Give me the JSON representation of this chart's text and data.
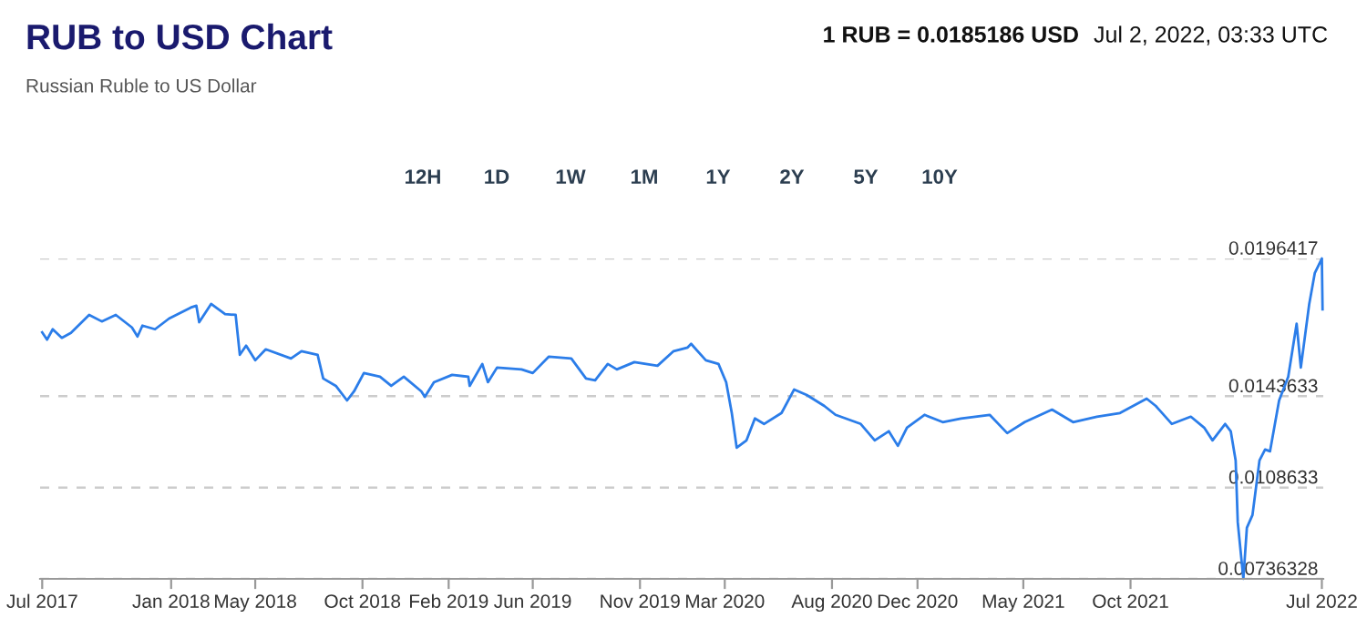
{
  "chart_data": {
    "type": "line",
    "title": "RUB to USD Chart",
    "subtitle": "Russian Ruble to US Dollar",
    "annotations": [
      "1 RUB = 0.0185186 USD",
      "Jul 2, 2022, 03:33 UTC",
      "12H",
      "1D",
      "1W",
      "1M",
      "1Y",
      "2Y",
      "5Y",
      "10Y"
    ],
    "x": [
      "2017-07-01",
      "2017-07-08",
      "2017-07-16",
      "2017-07-29",
      "2017-08-11",
      "2017-09-06",
      "2017-09-24",
      "2017-10-14",
      "2017-11-06",
      "2017-11-14",
      "2017-11-21",
      "2017-12-09",
      "2017-12-29",
      "2018-01-29",
      "2018-02-06",
      "2018-02-10",
      "2018-02-27",
      "2018-03-19",
      "2018-04-03",
      "2018-04-09",
      "2018-04-18",
      "2018-05-01",
      "2018-05-16",
      "2018-06-21",
      "2018-07-06",
      "2018-07-29",
      "2018-08-06",
      "2018-08-24",
      "2018-09-09",
      "2018-09-19",
      "2018-10-03",
      "2018-10-26",
      "2018-11-11",
      "2018-11-29",
      "2018-12-24",
      "2018-12-29",
      "2019-01-11",
      "2019-02-06",
      "2019-03-01",
      "2019-03-03",
      "2019-03-21",
      "2019-03-29",
      "2019-04-11",
      "2019-05-16",
      "2019-06-01",
      "2019-06-24",
      "2019-07-26",
      "2019-08-16",
      "2019-08-29",
      "2019-09-16",
      "2019-09-29",
      "2019-10-24",
      "2019-11-26",
      "2019-12-19",
      "2020-01-08",
      "2020-01-13",
      "2020-02-03",
      "2020-02-21",
      "2020-03-03",
      "2020-03-11",
      "2020-03-18",
      "2020-04-01",
      "2020-04-13",
      "2020-04-26",
      "2020-05-21",
      "2020-06-08",
      "2020-06-26",
      "2020-07-21",
      "2020-08-06",
      "2020-09-11",
      "2020-10-01",
      "2020-10-21",
      "2020-11-03",
      "2020-11-16",
      "2020-12-11",
      "2021-01-06",
      "2021-02-01",
      "2021-03-14",
      "2021-04-08",
      "2021-05-03",
      "2021-06-11",
      "2021-07-11",
      "2021-08-14",
      "2021-09-16",
      "2021-10-24",
      "2021-11-06",
      "2021-11-29",
      "2021-12-26",
      "2022-01-14",
      "2022-01-26",
      "2022-02-13",
      "2022-02-21",
      "2022-02-28",
      "2022-03-03",
      "2022-03-11",
      "2022-03-16",
      "2022-03-24",
      "2022-04-03",
      "2022-04-11",
      "2022-04-18",
      "2022-05-01",
      "2022-05-14",
      "2022-05-26",
      "2022-06-01",
      "2022-06-13",
      "2022-06-21",
      "2022-07-01",
      "2022-07-02"
    ],
    "series": [
      {
        "color": "#2b7de9",
        "values": [
          0.01681,
          0.01653,
          0.01693,
          0.0166,
          0.01679,
          0.01748,
          0.01723,
          0.01748,
          0.017,
          0.01665,
          0.01707,
          0.01693,
          0.01734,
          0.01776,
          0.01783,
          0.0172,
          0.0179,
          0.01751,
          0.01748,
          0.01595,
          0.0163,
          0.01574,
          0.01616,
          0.01581,
          0.01609,
          0.01595,
          0.01504,
          0.01476,
          0.0142,
          0.01455,
          0.01525,
          0.01511,
          0.01476,
          0.01511,
          0.01455,
          0.01434,
          0.0149,
          0.01518,
          0.01511,
          0.01476,
          0.0156,
          0.0149,
          0.01546,
          0.01539,
          0.01525,
          0.01588,
          0.01581,
          0.01504,
          0.01497,
          0.0156,
          0.01539,
          0.01567,
          0.01553,
          0.01609,
          0.01623,
          0.01637,
          0.01574,
          0.0156,
          0.0149,
          0.01372,
          0.01239,
          0.01267,
          0.01351,
          0.0133,
          0.01372,
          0.01462,
          0.01441,
          0.01399,
          0.01365,
          0.0133,
          0.01267,
          0.01302,
          0.01246,
          0.01316,
          0.01365,
          0.01337,
          0.01351,
          0.01365,
          0.01295,
          0.01337,
          0.01385,
          0.01337,
          0.01358,
          0.01372,
          0.01427,
          0.01399,
          0.0133,
          0.01358,
          0.01316,
          0.01267,
          0.0133,
          0.01302,
          0.0119,
          0.00953,
          0.00737,
          0.00932,
          0.00981,
          0.0119,
          0.01232,
          0.01225,
          0.0142,
          0.01511,
          0.01714,
          0.01546,
          0.0179,
          0.01909,
          0.01964,
          0.01769
        ]
      }
    ],
    "xlim": [
      "2017-06-28",
      "2022-07-03"
    ],
    "xticks": [
      {
        "value": "2017-07-01",
        "label": "Jul 2017"
      },
      {
        "value": "2018-01-01",
        "label": "Jan 2018"
      },
      {
        "value": "2018-05-01",
        "label": "May 2018"
      },
      {
        "value": "2018-10-01",
        "label": "Oct 2018"
      },
      {
        "value": "2019-02-01",
        "label": "Feb 2019"
      },
      {
        "value": "2019-06-01",
        "label": "Jun 2019"
      },
      {
        "value": "2019-11-01",
        "label": "Nov 2019"
      },
      {
        "value": "2020-03-01",
        "label": "Mar 2020"
      },
      {
        "value": "2020-08-01",
        "label": "Aug 2020"
      },
      {
        "value": "2020-12-01",
        "label": "Dec 2020"
      },
      {
        "value": "2021-05-01",
        "label": "May 2021"
      },
      {
        "value": "2021-10-01",
        "label": "Oct 2021"
      },
      {
        "value": "2022-07-01",
        "label": "Jul 2022"
      }
    ],
    "ylim": [
      0.00736328,
      0.0196417
    ],
    "yticks": [
      0.00736328,
      0.0108633,
      0.0143633,
      0.0196417
    ],
    "grid": "y",
    "line_style": "solid",
    "marker": "none",
    "legend": false
  }
}
